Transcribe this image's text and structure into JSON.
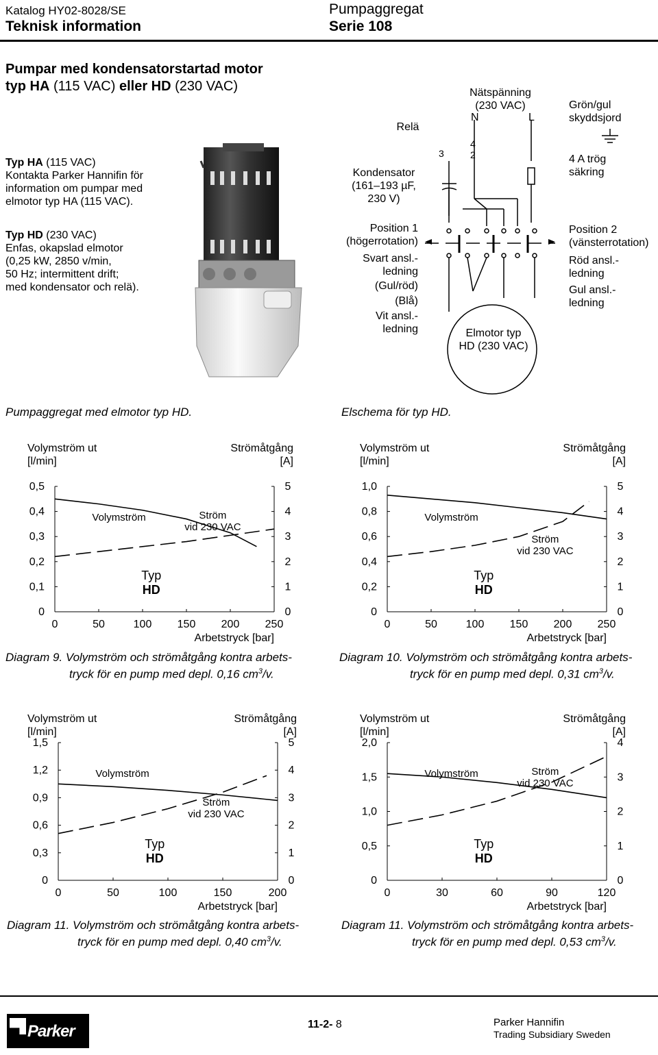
{
  "header": {
    "catalog": "Katalog HY02-8028/SE",
    "section": "Teknisk information",
    "product": "Pumpaggregat",
    "series": "Serie 108"
  },
  "title": {
    "line1": "Pumpar med kondensatorstartad motor",
    "line2_a": "typ HA",
    "line2_b": " (115 VAC) ",
    "line2_c": "eller HD",
    "line2_d": " (230 VAC)"
  },
  "ha_block": {
    "head_bold": "Typ HA",
    "head_rest": " (115 VAC)",
    "lines": [
      "Kontakta Parker Hannifin för",
      "information om pumpar med",
      "elmotor typ HA (115 VAC)."
    ]
  },
  "hd_block": {
    "head_bold": "Typ HD",
    "head_rest": " (230 VAC)",
    "lines": [
      "Enfas, okapslad elmotor",
      "(0,25 kW, 2850 v/min,",
      "50 Hz; intermittent drift;",
      "med kondensator och relä)."
    ]
  },
  "photo_caption": "Pumpaggregat med elmotor typ HD.",
  "schematic": {
    "rela": "Relä",
    "natspanning": [
      "Nätspänning",
      "(230 VAC)"
    ],
    "n": "N",
    "l": "L",
    "grongul": [
      "Grön/gul",
      "skyddsjord"
    ],
    "kondensator": [
      "Kondensator",
      "(161–193 µF,",
      "230 V)"
    ],
    "pin3": "3",
    "pin4": "4",
    "pin2": "2",
    "sakring": [
      "4 A trög",
      "säkring"
    ],
    "pos1": [
      "Position 1",
      "(högerrotation)"
    ],
    "pos2": [
      "Position 2",
      "(vänsterrotation)"
    ],
    "svart": [
      "Svart ansl.-",
      "ledning"
    ],
    "gulrod": "(Gul/röd)",
    "bla": "(Blå)",
    "vit": [
      "Vit ansl.-",
      "ledning"
    ],
    "rod": [
      "Röd ansl.-",
      "ledning"
    ],
    "gul": [
      "Gul ansl.-",
      "ledning"
    ],
    "elmotor": [
      "Elmotor typ",
      "HD (230 VAC)"
    ],
    "caption": "Elschema för typ HD."
  },
  "chart_data": [
    {
      "type": "line",
      "title": "",
      "left_axis_title": [
        "Volymström ut",
        "[l/min]"
      ],
      "right_axis_title": [
        "Strömåtgång",
        "[A]"
      ],
      "xlabel": "Arbetstryck [bar]",
      "x_ticks": [
        "0",
        "50",
        "100",
        "150",
        "200",
        "250"
      ],
      "y_left_ticks": [
        "0",
        "0,1",
        "0,2",
        "0,3",
        "0,4",
        "0,5"
      ],
      "y_right_ticks": [
        "0",
        "1",
        "2",
        "3",
        "4",
        "5"
      ],
      "xlim": [
        0,
        250
      ],
      "ylim_left": [
        0,
        0.5
      ],
      "ylim_right": [
        0,
        5
      ],
      "series": [
        {
          "name": "Volymström",
          "axis": "left",
          "style": "solid",
          "x": [
            0,
            50,
            100,
            150,
            200,
            230
          ],
          "y": [
            0.45,
            0.43,
            0.405,
            0.37,
            0.315,
            0.26
          ]
        },
        {
          "name": "Ström vid 230 VAC",
          "axis": "right",
          "style": "dashed",
          "x": [
            0,
            50,
            100,
            150,
            200,
            250
          ],
          "y": [
            2.2,
            2.4,
            2.6,
            2.8,
            3.05,
            3.3
          ]
        }
      ],
      "annotations": {
        "volym": "Volymström",
        "strom": [
          "Ström",
          "vid 230 VAC"
        ],
        "typ": [
          "Typ",
          "HD"
        ]
      },
      "caption": [
        "Diagram 9. Volymström och strömåtgång kontra arbets-",
        "tryck för en pump med depl. 0,16 cm",
        "3",
        "/v."
      ]
    },
    {
      "type": "line",
      "title": "",
      "left_axis_title": [
        "Volymström ut",
        "[l/min]"
      ],
      "right_axis_title": [
        "Strömåtgång",
        "[A]"
      ],
      "xlabel": "Arbetstryck [bar]",
      "x_ticks": [
        "0",
        "50",
        "100",
        "150",
        "200",
        "250"
      ],
      "y_left_ticks": [
        "0",
        "0,2",
        "0,4",
        "0,6",
        "0,8",
        "1,0"
      ],
      "y_right_ticks": [
        "0",
        "1",
        "2",
        "3",
        "4",
        "5"
      ],
      "xlim": [
        0,
        250
      ],
      "ylim_left": [
        0,
        1.0
      ],
      "ylim_right": [
        0,
        5
      ],
      "series": [
        {
          "name": "Volymström",
          "axis": "left",
          "style": "solid",
          "x": [
            0,
            50,
            100,
            150,
            200,
            250
          ],
          "y": [
            0.93,
            0.9,
            0.87,
            0.83,
            0.79,
            0.74
          ]
        },
        {
          "name": "Ström vid 230 VAC",
          "axis": "right",
          "style": "dashed",
          "x": [
            0,
            50,
            100,
            150,
            200,
            230
          ],
          "y": [
            2.2,
            2.4,
            2.65,
            3.0,
            3.6,
            4.4
          ]
        }
      ],
      "annotations": {
        "volym": "Volymström",
        "strom": [
          "Ström",
          "vid 230 VAC"
        ],
        "typ": [
          "Typ",
          "HD"
        ]
      },
      "caption": [
        "Diagram 10. Volymström och strömåtgång kontra arbets-",
        "tryck för en pump med depl. 0,31 cm",
        "3",
        "/v."
      ]
    },
    {
      "type": "line",
      "title": "",
      "left_axis_title": [
        "Volymström ut",
        "[l/min]"
      ],
      "right_axis_title": [
        "Strömåtgång",
        "[A]"
      ],
      "xlabel": "Arbetstryck [bar]",
      "x_ticks": [
        "0",
        "50",
        "100",
        "150",
        "200"
      ],
      "y_left_ticks": [
        "0",
        "0,3",
        "0,6",
        "0,9",
        "1,2",
        "1,5"
      ],
      "y_right_ticks": [
        "0",
        "1",
        "2",
        "3",
        "4",
        "5"
      ],
      "xlim": [
        0,
        200
      ],
      "ylim_left": [
        0,
        1.5
      ],
      "ylim_right": [
        0,
        5
      ],
      "series": [
        {
          "name": "Volymström",
          "axis": "left",
          "style": "solid",
          "x": [
            0,
            50,
            100,
            150,
            200
          ],
          "y": [
            1.05,
            1.02,
            0.98,
            0.93,
            0.87
          ]
        },
        {
          "name": "Ström vid 230 VAC",
          "axis": "right",
          "style": "dashed",
          "x": [
            0,
            50,
            100,
            150,
            190
          ],
          "y": [
            1.7,
            2.1,
            2.6,
            3.2,
            3.8
          ]
        }
      ],
      "annotations": {
        "volym": "Volymström",
        "strom": [
          "Ström",
          "vid 230 VAC"
        ],
        "typ": [
          "Typ",
          "HD"
        ]
      },
      "caption": [
        "Diagram 11. Volymström och strömåtgång kontra arbets-",
        "tryck för en pump med depl. 0,40 cm",
        "3",
        "/v."
      ]
    },
    {
      "type": "line",
      "title": "",
      "left_axis_title": [
        "Volymström ut",
        "[l/min]"
      ],
      "right_axis_title": [
        "Strömåtgång",
        "[A]"
      ],
      "xlabel": "Arbetstryck [bar]",
      "x_ticks": [
        "0",
        "30",
        "60",
        "90",
        "120"
      ],
      "y_left_ticks": [
        "0",
        "0,5",
        "1,0",
        "1,5",
        "2,0"
      ],
      "y_right_ticks": [
        "0",
        "1",
        "2",
        "3",
        "4"
      ],
      "xlim": [
        0,
        120
      ],
      "ylim_left": [
        0,
        2.0
      ],
      "ylim_right": [
        0,
        4
      ],
      "series": [
        {
          "name": "Volymström",
          "axis": "left",
          "style": "solid",
          "x": [
            0,
            30,
            60,
            90,
            120
          ],
          "y": [
            1.55,
            1.5,
            1.42,
            1.32,
            1.2
          ]
        },
        {
          "name": "Ström vid 230 VAC",
          "axis": "right",
          "style": "dashed",
          "x": [
            0,
            30,
            60,
            90,
            120
          ],
          "y": [
            1.6,
            1.9,
            2.3,
            2.85,
            3.6
          ]
        }
      ],
      "annotations": {
        "volym": "Volymström",
        "strom": [
          "Ström",
          "vid 230 VAC"
        ],
        "typ": [
          "Typ",
          "HD"
        ]
      },
      "caption": [
        "Diagram 11. Volymström och strömåtgång kontra arbets-",
        "tryck för en pump med depl. 0,53 cm",
        "3",
        "/v."
      ]
    }
  ],
  "footer": {
    "page_a": "11-2-",
    "page_b": " 8",
    "company": "Parker Hannifin",
    "subsidiary": "Trading Subsidiary Sweden",
    "logo_text": "Parker"
  }
}
